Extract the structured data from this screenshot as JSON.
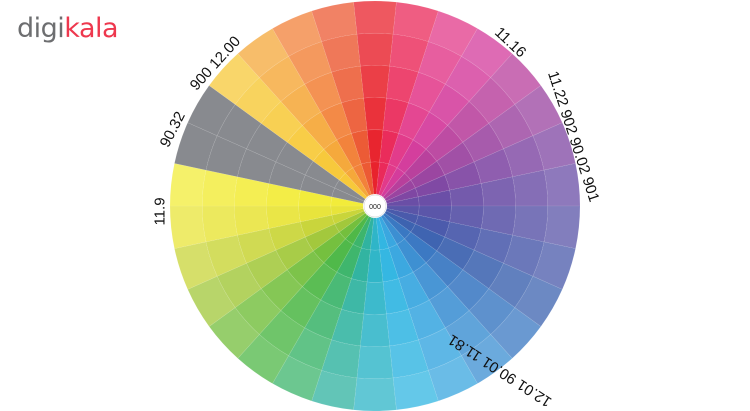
{
  "logo": {
    "part1": "digi",
    "part2": "kala",
    "colors": {
      "digi": "#6d6e70",
      "kala": "#ee384e"
    }
  },
  "wheel": {
    "center_label": "000",
    "hues": [
      "#e8232d",
      "#ea2a5a",
      "#e23a8a",
      "#d43c9c",
      "#b83f9c",
      "#9a44a0",
      "#7f47a3",
      "#6a4ea6",
      "#5a55a8",
      "#4a5aab",
      "#3d63b0",
      "#3a78c2",
      "#3c8fd2",
      "#3aa7e0",
      "#33b6e2",
      "#2fb5c8",
      "#30b3a0",
      "#3db56c",
      "#4fb848",
      "#74bf3d",
      "#a2c83b",
      "#c9d53a",
      "#e8e43a",
      "#f2ec3a",
      "#888a8f",
      "#888a8f",
      "#f7c93a",
      "#f5a83a",
      "#f2823a",
      "#ec5a34"
    ]
  },
  "labels": {
    "top_right": "11.16",
    "right": "11.22 902 90.02 901",
    "bottom_right": "12.01 90.01 11.81",
    "left": "11.9",
    "upper_left": "90.32",
    "top_left": "900 12.00"
  }
}
